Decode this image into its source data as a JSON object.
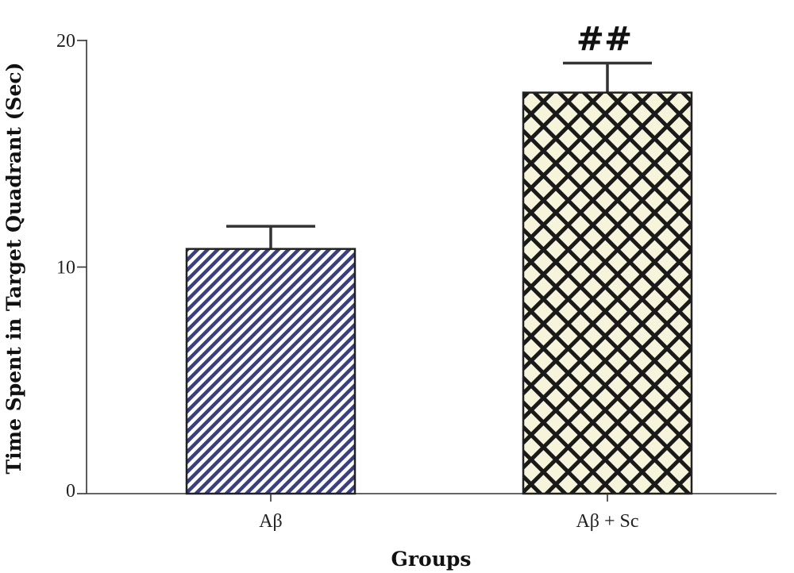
{
  "chart_data": {
    "type": "bar",
    "categories": [
      "Aβ",
      "Aβ + Sc"
    ],
    "values": [
      10.8,
      17.7
    ],
    "errors": [
      1.0,
      1.3
    ],
    "annotations": [
      "",
      "##"
    ],
    "xlabel": "Groups",
    "ylabel": "Time Spent in Target Quadrant (Sec)",
    "ylim": [
      0,
      20
    ],
    "yticks": [
      0,
      10,
      20
    ],
    "grid": false,
    "bar_styles": [
      {
        "pattern": "diagonal-stripes",
        "fg": "#3a3f80",
        "bg": "#ffffff"
      },
      {
        "pattern": "crosshatch",
        "fg": "#1a1a1a",
        "bg": "#f7f4dc"
      }
    ]
  }
}
